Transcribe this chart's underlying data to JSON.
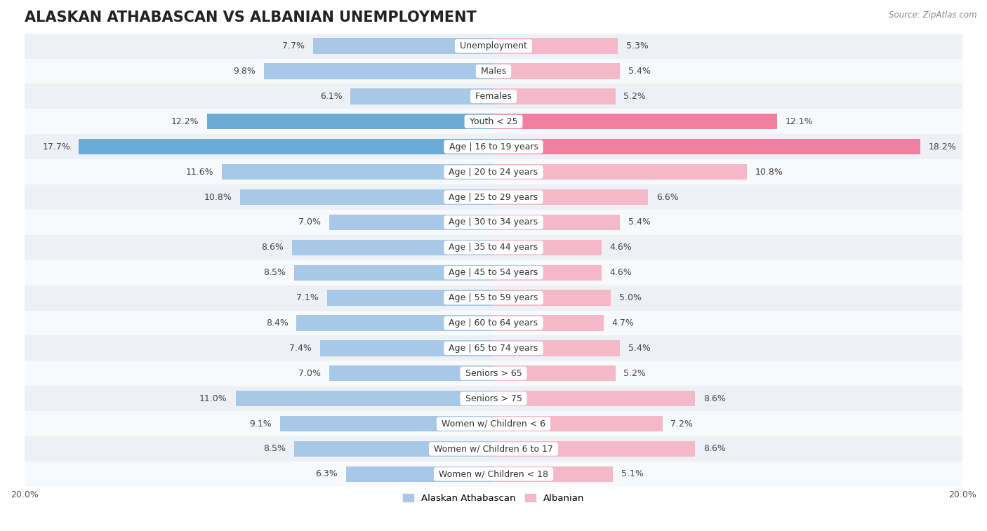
{
  "title": "ALASKAN ATHABASCAN VS ALBANIAN UNEMPLOYMENT",
  "source": "Source: ZipAtlas.com",
  "categories": [
    "Unemployment",
    "Males",
    "Females",
    "Youth < 25",
    "Age | 16 to 19 years",
    "Age | 20 to 24 years",
    "Age | 25 to 29 years",
    "Age | 30 to 34 years",
    "Age | 35 to 44 years",
    "Age | 45 to 54 years",
    "Age | 55 to 59 years",
    "Age | 60 to 64 years",
    "Age | 65 to 74 years",
    "Seniors > 65",
    "Seniors > 75",
    "Women w/ Children < 6",
    "Women w/ Children 6 to 17",
    "Women w/ Children < 18"
  ],
  "left_values": [
    7.7,
    9.8,
    6.1,
    12.2,
    17.7,
    11.6,
    10.8,
    7.0,
    8.6,
    8.5,
    7.1,
    8.4,
    7.4,
    7.0,
    11.0,
    9.1,
    8.5,
    6.3
  ],
  "right_values": [
    5.3,
    5.4,
    5.2,
    12.1,
    18.2,
    10.8,
    6.6,
    5.4,
    4.6,
    4.6,
    5.0,
    4.7,
    5.4,
    5.2,
    8.6,
    7.2,
    8.6,
    5.1
  ],
  "left_color": "#a8c8e8",
  "right_color": "#f4b8c8",
  "highlight_left_color": "#6aaad4",
  "highlight_right_color": "#f080a0",
  "highlight_rows": [
    3,
    4
  ],
  "bg_color_odd": "#edf0f5",
  "bg_color_even": "#f8f9fb",
  "axis_limit": 20.0,
  "left_label": "Alaskan Athabascan",
  "right_label": "Albanian",
  "bar_height": 0.62,
  "title_fontsize": 15,
  "category_fontsize": 9,
  "value_fontsize": 9,
  "axis_fontsize": 9
}
